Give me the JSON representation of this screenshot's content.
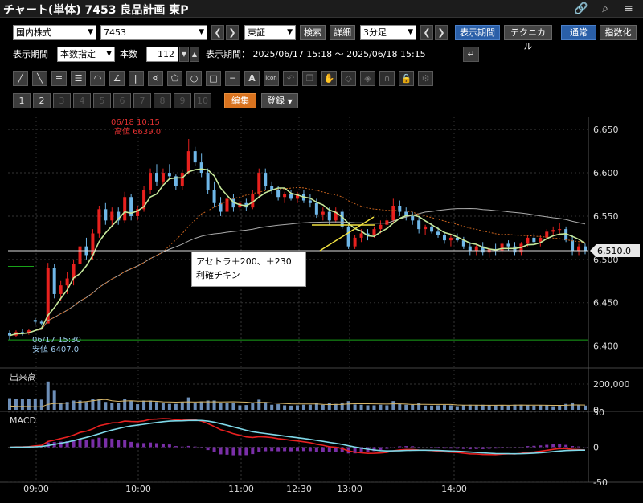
{
  "window": {
    "title": "チャート(単体) 7453 良品計画 東P"
  },
  "toolbar": {
    "market": "国内株式",
    "code": "7453",
    "exchange": "東証",
    "search_label": "検索",
    "detail_label": "詳細",
    "interval": "3分足",
    "period_button": "表示期間",
    "technical_button": "テクニカル",
    "normal_button": "通常",
    "index_button": "指数化"
  },
  "period_row": {
    "period_label": "表示期間",
    "period_mode": "本数指定",
    "count_label": "本数",
    "count_value": "112",
    "range_text": "表示期間： 2025/06/17 15:18 ～ 2025/06/18 15:15"
  },
  "tools": [
    "line-tool",
    "ray-tool",
    "hlines-tool",
    "channel-tool",
    "arc-tool",
    "fan-tool",
    "vlines-tool",
    "angle-tool",
    "pentagon-tool",
    "circle-tool",
    "rectangle-tool",
    "hline-tool",
    "text-tool",
    "icon-tool",
    "undo-tool",
    "copy-tool",
    "hand-tool",
    "erase-tool",
    "erase-all-tool",
    "magnet-tool",
    "lock-tool",
    "settings-tool"
  ],
  "tools_icon_text": {
    "text_tool": "A",
    "icon_tool": "icon"
  },
  "pages": [
    "1",
    "2",
    "3",
    "4",
    "5",
    "6",
    "7",
    "8",
    "9",
    "10"
  ],
  "edit_button": "編集",
  "register_button": "登録",
  "chart_data": {
    "type": "line",
    "price_axis": {
      "ticks": [
        "6,650",
        "6,600",
        "6,550",
        "6,500",
        "6,450",
        "6,400"
      ],
      "range": [
        6395,
        6665
      ]
    },
    "time_ticks": [
      "09:00",
      "10:00",
      "11:00",
      "12:30",
      "13:00",
      "14:00"
    ],
    "high_label": {
      "time": "06/18 10:15",
      "text": "高値 6639.0"
    },
    "low_label": {
      "time": "06/17 15:30",
      "text": "安値 6407.0"
    },
    "last_price_label": "6,510.0",
    "annotation": {
      "line1": "アセトラ＋200、＋230",
      "line2": "利確チキン"
    },
    "volume_panel": {
      "title": "出来高",
      "ticks": [
        "200,000",
        "0"
      ]
    },
    "macd_panel": {
      "title": "MACD",
      "ticks": [
        "50",
        "0",
        "-50"
      ]
    },
    "candles": [
      {
        "o": 6415,
        "h": 6418,
        "l": 6407,
        "c": 6412
      },
      {
        "o": 6412,
        "h": 6418,
        "l": 6410,
        "c": 6416
      },
      {
        "o": 6416,
        "h": 6420,
        "l": 6412,
        "c": 6415
      },
      {
        "o": 6415,
        "h": 6420,
        "l": 6413,
        "c": 6418
      },
      {
        "o": 6430,
        "h": 6432,
        "l": 6425,
        "c": 6428
      },
      {
        "o": 6428,
        "h": 6430,
        "l": 6424,
        "c": 6426
      },
      {
        "o": 6426,
        "h": 6496,
        "l": 6426,
        "c": 6490
      },
      {
        "o": 6490,
        "h": 6495,
        "l": 6455,
        "c": 6460
      },
      {
        "o": 6460,
        "h": 6475,
        "l": 6452,
        "c": 6470
      },
      {
        "o": 6470,
        "h": 6485,
        "l": 6460,
        "c": 6478
      },
      {
        "o": 6478,
        "h": 6500,
        "l": 6470,
        "c": 6495
      },
      {
        "o": 6495,
        "h": 6520,
        "l": 6490,
        "c": 6515
      },
      {
        "o": 6515,
        "h": 6525,
        "l": 6500,
        "c": 6505
      },
      {
        "o": 6505,
        "h": 6535,
        "l": 6500,
        "c": 6530
      },
      {
        "o": 6530,
        "h": 6562,
        "l": 6525,
        "c": 6558
      },
      {
        "o": 6558,
        "h": 6565,
        "l": 6540,
        "c": 6545
      },
      {
        "o": 6545,
        "h": 6560,
        "l": 6538,
        "c": 6555
      },
      {
        "o": 6555,
        "h": 6560,
        "l": 6540,
        "c": 6545
      },
      {
        "o": 6545,
        "h": 6578,
        "l": 6542,
        "c": 6572
      },
      {
        "o": 6572,
        "h": 6575,
        "l": 6545,
        "c": 6550
      },
      {
        "o": 6550,
        "h": 6562,
        "l": 6545,
        "c": 6558
      },
      {
        "o": 6558,
        "h": 6585,
        "l": 6555,
        "c": 6580
      },
      {
        "o": 6580,
        "h": 6605,
        "l": 6575,
        "c": 6600
      },
      {
        "o": 6600,
        "h": 6610,
        "l": 6585,
        "c": 6590
      },
      {
        "o": 6590,
        "h": 6605,
        "l": 6585,
        "c": 6600
      },
      {
        "o": 6600,
        "h": 6610,
        "l": 6592,
        "c": 6596
      },
      {
        "o": 6596,
        "h": 6598,
        "l": 6580,
        "c": 6585
      },
      {
        "o": 6585,
        "h": 6604,
        "l": 6580,
        "c": 6600
      },
      {
        "o": 6600,
        "h": 6639,
        "l": 6598,
        "c": 6625
      },
      {
        "o": 6625,
        "h": 6630,
        "l": 6608,
        "c": 6612
      },
      {
        "o": 6612,
        "h": 6622,
        "l": 6595,
        "c": 6600
      },
      {
        "o": 6600,
        "h": 6605,
        "l": 6575,
        "c": 6580
      },
      {
        "o": 6580,
        "h": 6590,
        "l": 6560,
        "c": 6565
      },
      {
        "o": 6565,
        "h": 6572,
        "l": 6550,
        "c": 6555
      },
      {
        "o": 6555,
        "h": 6575,
        "l": 6552,
        "c": 6570
      },
      {
        "o": 6570,
        "h": 6575,
        "l": 6555,
        "c": 6560
      },
      {
        "o": 6560,
        "h": 6568,
        "l": 6555,
        "c": 6565
      },
      {
        "o": 6565,
        "h": 6570,
        "l": 6556,
        "c": 6560
      },
      {
        "o": 6560,
        "h": 6580,
        "l": 6558,
        "c": 6575
      },
      {
        "o": 6575,
        "h": 6605,
        "l": 6572,
        "c": 6600
      },
      {
        "o": 6600,
        "h": 6605,
        "l": 6580,
        "c": 6585
      },
      {
        "o": 6585,
        "h": 6590,
        "l": 6575,
        "c": 6580
      },
      {
        "o": 6580,
        "h": 6585,
        "l": 6568,
        "c": 6572
      },
      {
        "o": 6572,
        "h": 6578,
        "l": 6565,
        "c": 6575
      },
      {
        "o": 6575,
        "h": 6580,
        "l": 6568,
        "c": 6570
      },
      {
        "o": 6570,
        "h": 6578,
        "l": 6565,
        "c": 6575
      },
      {
        "o": 6575,
        "h": 6580,
        "l": 6565,
        "c": 6568
      },
      {
        "o": 6568,
        "h": 6575,
        "l": 6560,
        "c": 6565
      },
      {
        "o": 6565,
        "h": 6570,
        "l": 6548,
        "c": 6552
      },
      {
        "o": 6552,
        "h": 6560,
        "l": 6545,
        "c": 6555
      },
      {
        "o": 6555,
        "h": 6560,
        "l": 6540,
        "c": 6545
      },
      {
        "o": 6545,
        "h": 6560,
        "l": 6542,
        "c": 6555
      },
      {
        "o": 6555,
        "h": 6558,
        "l": 6535,
        "c": 6538
      },
      {
        "o": 6538,
        "h": 6540,
        "l": 6512,
        "c": 6515
      },
      {
        "o": 6515,
        "h": 6528,
        "l": 6512,
        "c": 6525
      },
      {
        "o": 6525,
        "h": 6535,
        "l": 6520,
        "c": 6530
      },
      {
        "o": 6530,
        "h": 6535,
        "l": 6522,
        "c": 6528
      },
      {
        "o": 6528,
        "h": 6538,
        "l": 6525,
        "c": 6535
      },
      {
        "o": 6535,
        "h": 6545,
        "l": 6530,
        "c": 6540
      },
      {
        "o": 6540,
        "h": 6548,
        "l": 6535,
        "c": 6545
      },
      {
        "o": 6545,
        "h": 6570,
        "l": 6542,
        "c": 6562
      },
      {
        "o": 6562,
        "h": 6568,
        "l": 6550,
        "c": 6555
      },
      {
        "o": 6555,
        "h": 6560,
        "l": 6545,
        "c": 6550
      },
      {
        "o": 6550,
        "h": 6555,
        "l": 6540,
        "c": 6545
      },
      {
        "o": 6545,
        "h": 6550,
        "l": 6530,
        "c": 6535
      },
      {
        "o": 6535,
        "h": 6540,
        "l": 6528,
        "c": 6538
      },
      {
        "o": 6538,
        "h": 6542,
        "l": 6530,
        "c": 6532
      },
      {
        "o": 6532,
        "h": 6538,
        "l": 6525,
        "c": 6528
      },
      {
        "o": 6528,
        "h": 6532,
        "l": 6518,
        "c": 6522
      },
      {
        "o": 6522,
        "h": 6528,
        "l": 6515,
        "c": 6525
      },
      {
        "o": 6525,
        "h": 6530,
        "l": 6520,
        "c": 6522
      },
      {
        "o": 6522,
        "h": 6526,
        "l": 6512,
        "c": 6515
      },
      {
        "o": 6515,
        "h": 6520,
        "l": 6505,
        "c": 6510
      },
      {
        "o": 6510,
        "h": 6518,
        "l": 6505,
        "c": 6515
      },
      {
        "o": 6515,
        "h": 6520,
        "l": 6505,
        "c": 6508
      },
      {
        "o": 6508,
        "h": 6515,
        "l": 6502,
        "c": 6512
      },
      {
        "o": 6512,
        "h": 6518,
        "l": 6505,
        "c": 6510
      },
      {
        "o": 6510,
        "h": 6520,
        "l": 6506,
        "c": 6518
      },
      {
        "o": 6518,
        "h": 6522,
        "l": 6510,
        "c": 6515
      },
      {
        "o": 6515,
        "h": 6520,
        "l": 6505,
        "c": 6508
      },
      {
        "o": 6508,
        "h": 6520,
        "l": 6505,
        "c": 6518
      },
      {
        "o": 6518,
        "h": 6528,
        "l": 6515,
        "c": 6525
      },
      {
        "o": 6525,
        "h": 6530,
        "l": 6518,
        "c": 6520
      },
      {
        "o": 6520,
        "h": 6528,
        "l": 6515,
        "c": 6525
      },
      {
        "o": 6525,
        "h": 6535,
        "l": 6522,
        "c": 6532
      },
      {
        "o": 6532,
        "h": 6538,
        "l": 6528,
        "c": 6534
      },
      {
        "o": 6534,
        "h": 6542,
        "l": 6530,
        "c": 6535
      },
      {
        "o": 6535,
        "h": 6538,
        "l": 6520,
        "c": 6522
      },
      {
        "o": 6522,
        "h": 6528,
        "l": 6505,
        "c": 6510
      },
      {
        "o": 6510,
        "h": 6518,
        "l": 6505,
        "c": 6515
      },
      {
        "o": 6515,
        "h": 6518,
        "l": 6506,
        "c": 6510
      }
    ]
  }
}
